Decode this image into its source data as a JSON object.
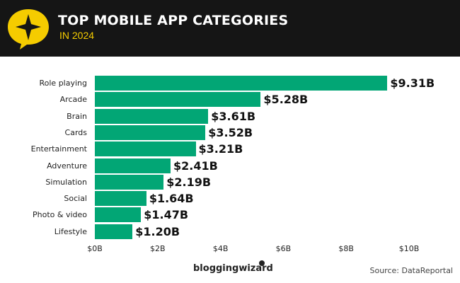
{
  "header": {
    "title": "TOP MOBILE APP CATEGORIES",
    "subtitle": "IN 2024",
    "logo_icon": "star-speech-bubble-icon",
    "accent_color": "#f5cc00",
    "background_color": "#151515"
  },
  "footer": {
    "brand": "bloggingwizard",
    "source": "Source: DataReportal"
  },
  "chart_data": {
    "type": "bar",
    "orientation": "horizontal",
    "title": "TOP MOBILE APP CATEGORIES",
    "subtitle": "IN 2024",
    "xlabel": "",
    "ylabel": "",
    "categories": [
      "Role playing",
      "Arcade",
      "Brain",
      "Cards",
      "Entertainment",
      "Adventure",
      "Simulation",
      "Social",
      "Photo & video",
      "Lifestyle"
    ],
    "values": [
      9.31,
      5.28,
      3.61,
      3.52,
      3.21,
      2.41,
      2.19,
      1.64,
      1.47,
      1.2
    ],
    "value_labels": [
      "$9.31B",
      "$5.28B",
      "$3.61B",
      "$3.52B",
      "$3.21B",
      "$2.41B",
      "$2.19B",
      "$1.64B",
      "$1.47B",
      "$1.20B"
    ],
    "unit": "USD billions",
    "xlim": [
      0,
      10
    ],
    "x_ticks": [
      "$0B",
      "$2B",
      "$4B",
      "$6B",
      "$8B",
      "$10B"
    ],
    "grid": false,
    "legend": null,
    "bar_color": "#02a675",
    "source": "Source: DataReportal"
  }
}
